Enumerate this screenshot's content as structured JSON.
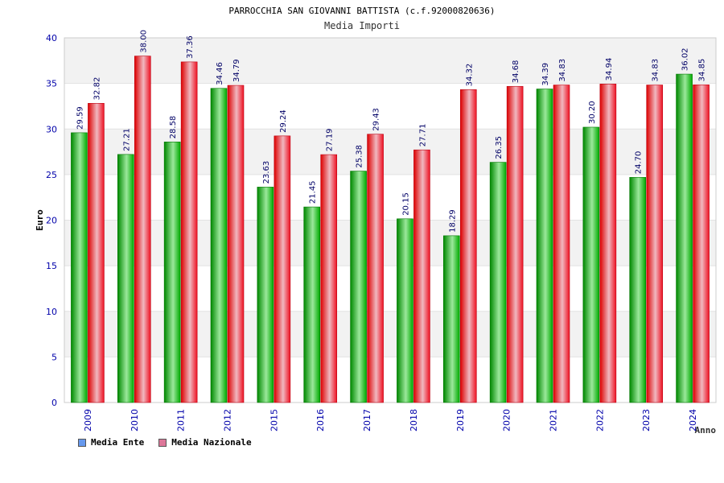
{
  "chart_data": {
    "type": "bar",
    "title": "PARROCCHIA SAN GIOVANNI BATTISTA (c.f.92000820636)",
    "subtitle": "Media Importi",
    "xlabel": "Anno",
    "ylabel": "Euro",
    "ylim": [
      0,
      40
    ],
    "yticks": [
      0,
      5,
      10,
      15,
      20,
      25,
      30,
      35,
      40
    ],
    "categories": [
      "2009",
      "2010",
      "2011",
      "2012",
      "2015",
      "2016",
      "2017",
      "2018",
      "2019",
      "2020",
      "2021",
      "2022",
      "2023",
      "2024"
    ],
    "series": [
      {
        "name": "Media Ente",
        "color": "#00aa00",
        "legend_color": "#6699ee",
        "values": [
          29.59,
          27.21,
          28.58,
          34.46,
          23.63,
          21.45,
          25.38,
          20.15,
          18.29,
          26.35,
          34.39,
          30.2,
          24.7,
          36.02
        ]
      },
      {
        "name": "Media Nazionale",
        "color": "#ee1122",
        "legend_color": "#dd7799",
        "values": [
          32.82,
          38.0,
          37.36,
          34.79,
          29.24,
          27.19,
          29.43,
          27.71,
          34.32,
          34.68,
          34.83,
          34.94,
          34.83,
          34.85
        ]
      }
    ],
    "grid": true,
    "legend_position": "bottom-left"
  }
}
